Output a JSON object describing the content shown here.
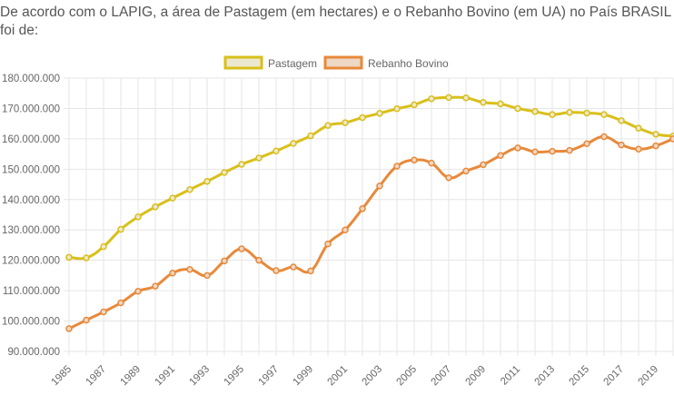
{
  "heading": "De acordo com o LAPIG, a área de Pastagem (em hectares) e o Rebanho Bovino (em UA) no País BRASIL foi de:",
  "chart_data": {
    "type": "line",
    "title": "",
    "xlabel": "",
    "ylabel": "",
    "x": [
      1985,
      1986,
      1987,
      1988,
      1989,
      1990,
      1991,
      1992,
      1993,
      1994,
      1995,
      1996,
      1997,
      1998,
      1999,
      2000,
      2001,
      2002,
      2003,
      2004,
      2005,
      2006,
      2007,
      2008,
      2009,
      2010,
      2011,
      2012,
      2013,
      2014,
      2015,
      2016,
      2017,
      2018,
      2019,
      2020
    ],
    "x_tick_labels": [
      "1985",
      "1987",
      "1989",
      "1991",
      "1993",
      "1995",
      "1997",
      "1999",
      "2001",
      "2003",
      "2005",
      "2007",
      "2009",
      "2011",
      "2013",
      "2015",
      "2017",
      "2019"
    ],
    "ylim": [
      90000000,
      180000000
    ],
    "y_tick_labels": [
      "180.000.000",
      "170.000.000",
      "160.000.000",
      "150.000.000",
      "140.000.000",
      "130.000.000",
      "120.000.000",
      "110.000.000",
      "100.000.000",
      "90.000.000"
    ],
    "grid": true,
    "legend_position": "top-center",
    "series": [
      {
        "name": "Pastagem",
        "color": "#d9bf1a",
        "fill": "#ece8cf",
        "values": [
          121000000,
          120800000,
          124500000,
          130200000,
          134300000,
          137600000,
          140500000,
          143300000,
          146000000,
          148900000,
          151600000,
          153700000,
          156000000,
          158500000,
          161000000,
          164400000,
          165300000,
          167000000,
          168400000,
          169900000,
          171200000,
          173200000,
          173600000,
          173500000,
          172000000,
          171500000,
          170000000,
          169000000,
          168000000,
          168700000,
          168500000,
          168000000,
          166000000,
          163500000,
          161500000,
          160900000
        ]
      },
      {
        "name": "Rebanho Bovino",
        "color": "#e8893a",
        "fill": "#eed7c4",
        "values": [
          97500000,
          100300000,
          103000000,
          106000000,
          109800000,
          111500000,
          115800000,
          117000000,
          115000000,
          119800000,
          123800000,
          120000000,
          116600000,
          117800000,
          116500000,
          125400000,
          130000000,
          137000000,
          144500000,
          151000000,
          153000000,
          152000000,
          147200000,
          149400000,
          151500000,
          154500000,
          157000000,
          155700000,
          155900000,
          156200000,
          158400000,
          160700000,
          158000000,
          156600000,
          157700000,
          160000000
        ]
      }
    ]
  }
}
